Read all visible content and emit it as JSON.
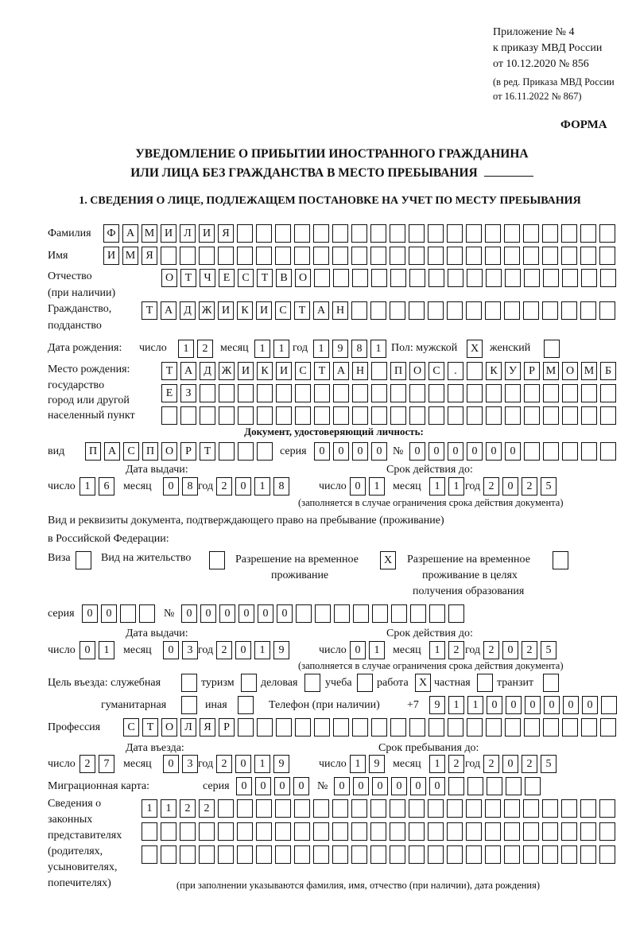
{
  "header": {
    "line1": "Приложение № 4",
    "line2": "к приказу МВД России",
    "line3": "от 10.12.2020 № 856",
    "line4": "(в ред. Приказа МВД России",
    "line5": "от 16.11.2022 № 867)",
    "forma": "ФОРМА",
    "title1": "УВЕДОМЛЕНИЕ О ПРИБЫТИИ ИНОСТРАННОГО ГРАЖДАНИНА",
    "title2": "ИЛИ ЛИЦА БЕЗ ГРАЖДАНСТВА В МЕСТО ПРЕБЫВАНИЯ"
  },
  "section1": {
    "heading": "1. СВЕДЕНИЯ О ЛИЦЕ, ПОДЛЕЖАЩЕМ ПОСТАНОВКЕ НА УЧЕТ ПО МЕСТУ ПРЕБЫВАНИЯ"
  },
  "labels": {
    "surname": "Фамилия",
    "name": "Имя",
    "patronymic1": "Отчество",
    "patronymic2": "(при наличии)",
    "citizenship1": "Гражданство,",
    "citizenship2": "подданство",
    "dob": "Дата рождения:",
    "day": "число",
    "month": "месяц",
    "year": "год",
    "sex_male": "Пол: мужской",
    "sex_female": "женский",
    "birthplace1": "Место рождения:",
    "birthplace2": "государство",
    "birthplace3": "город или другой",
    "birthplace4": "населенный пункт",
    "id_doc": "Документ, удостоверяющий личность:",
    "kind": "вид",
    "series": "серия",
    "number": "№",
    "issue_date": "Дата выдачи:",
    "valid_until": "Срок действия до:",
    "validity_note": "(заполняется в случае ограничения срока действия документа)",
    "permit1": "Вид и реквизиты документа, подтверждающего право на пребывание (проживание)",
    "permit2": "в Российской Федерации:",
    "visa": "Виза",
    "residence": "Вид на жительство",
    "trp1": "Разрешение на временное",
    "trp2": "проживание",
    "trp_edu1": "Разрешение на временное",
    "trp_edu2": "проживание в целях",
    "trp_edu3": "получения образования",
    "purpose": "Цель въезда: служебная",
    "tourism": "туризм",
    "business": "деловая",
    "study": "учеба",
    "work": "работа",
    "private": "частная",
    "transit": "транзит",
    "humanitarian": "гуманитарная",
    "other": "иная",
    "phone": "Телефон (при наличии)",
    "phone_prefix": "+7",
    "profession": "Профессия",
    "entry_date": "Дата въезда:",
    "stay_until": "Срок пребывания до:",
    "migration_card": "Миграционная карта:",
    "reps1": "Сведения о",
    "reps2": "законных",
    "reps3": "представителях",
    "reps4": "(родителях,",
    "reps5": "усыновителях,",
    "reps6": "попечителях)",
    "reps_note": "(при заполнении указываются фамилия, имя, отчество (при наличии), дата рождения)"
  },
  "fields": {
    "surname": [
      "Ф",
      "А",
      "М",
      "И",
      "Л",
      "И",
      "Я"
    ],
    "name": [
      "И",
      "М",
      "Я"
    ],
    "patronymic": [
      "О",
      "Т",
      "Ч",
      "Е",
      "С",
      "Т",
      "В",
      "О"
    ],
    "citizenship": [
      "Т",
      "А",
      "Д",
      "Ж",
      "И",
      "К",
      "И",
      "С",
      "Т",
      "А",
      "Н"
    ],
    "dob_day": [
      "1",
      "2"
    ],
    "dob_month": [
      "1",
      "1"
    ],
    "dob_year": [
      "1",
      "9",
      "8",
      "1"
    ],
    "sex_male": [
      "X"
    ],
    "sex_female": [
      ""
    ],
    "birthplace_1": [
      "Т",
      "А",
      "Д",
      "Ж",
      "И",
      "К",
      "И",
      "С",
      "Т",
      "А",
      "Н",
      "",
      "П",
      "О",
      "С",
      ".",
      "",
      "К",
      "У",
      "Р",
      "М",
      "О",
      "М",
      "Б"
    ],
    "birthplace_2": [
      "Е",
      "З"
    ],
    "birthplace_3": [],
    "id_kind": [
      "П",
      "А",
      "С",
      "П",
      "О",
      "Р",
      "Т"
    ],
    "id_series": [
      "0",
      "0",
      "0",
      "0"
    ],
    "id_number": [
      "0",
      "0",
      "0",
      "0",
      "0",
      "0"
    ],
    "id_issue_day": [
      "1",
      "6"
    ],
    "id_issue_month": [
      "0",
      "8"
    ],
    "id_issue_year": [
      "2",
      "0",
      "1",
      "8"
    ],
    "id_valid_day": [
      "0",
      "1"
    ],
    "id_valid_month": [
      "1",
      "1"
    ],
    "id_valid_year": [
      "2",
      "0",
      "2",
      "5"
    ],
    "permit_visa": [
      ""
    ],
    "permit_residence": [
      ""
    ],
    "permit_trp": [
      "X"
    ],
    "permit_trp_edu": [
      ""
    ],
    "permit_series": [
      "0",
      "0"
    ],
    "permit_number": [
      "0",
      "0",
      "0",
      "0",
      "0",
      "0"
    ],
    "permit_issue_day": [
      "0",
      "1"
    ],
    "permit_issue_month": [
      "0",
      "3"
    ],
    "permit_issue_year": [
      "2",
      "0",
      "1",
      "9"
    ],
    "permit_valid_day": [
      "0",
      "1"
    ],
    "permit_valid_month": [
      "1",
      "2"
    ],
    "permit_valid_year": [
      "2",
      "0",
      "2",
      "5"
    ],
    "purpose_official": [
      ""
    ],
    "purpose_tourism": [
      ""
    ],
    "purpose_business": [
      ""
    ],
    "purpose_study": [
      ""
    ],
    "purpose_work": [
      "X"
    ],
    "purpose_private": [
      ""
    ],
    "purpose_transit": [
      ""
    ],
    "purpose_humanitarian": [
      ""
    ],
    "purpose_other": [
      ""
    ],
    "phone": [
      "9",
      "1",
      "1",
      "0",
      "0",
      "0",
      "0",
      "0",
      "0"
    ],
    "profession": [
      "С",
      "Т",
      "О",
      "Л",
      "Я",
      "Р"
    ],
    "entry_day": [
      "2",
      "7"
    ],
    "entry_month": [
      "0",
      "3"
    ],
    "entry_year": [
      "2",
      "0",
      "1",
      "9"
    ],
    "stay_day": [
      "1",
      "9"
    ],
    "stay_month": [
      "1",
      "2"
    ],
    "stay_year": [
      "2",
      "0",
      "2",
      "5"
    ],
    "mc_series": [
      "0",
      "0",
      "0",
      "0"
    ],
    "mc_number": [
      "0",
      "0",
      "0",
      "0",
      "0",
      "0"
    ],
    "reps_1": [
      "1",
      "1",
      "2",
      "2"
    ],
    "reps_2": [],
    "reps_3": []
  }
}
